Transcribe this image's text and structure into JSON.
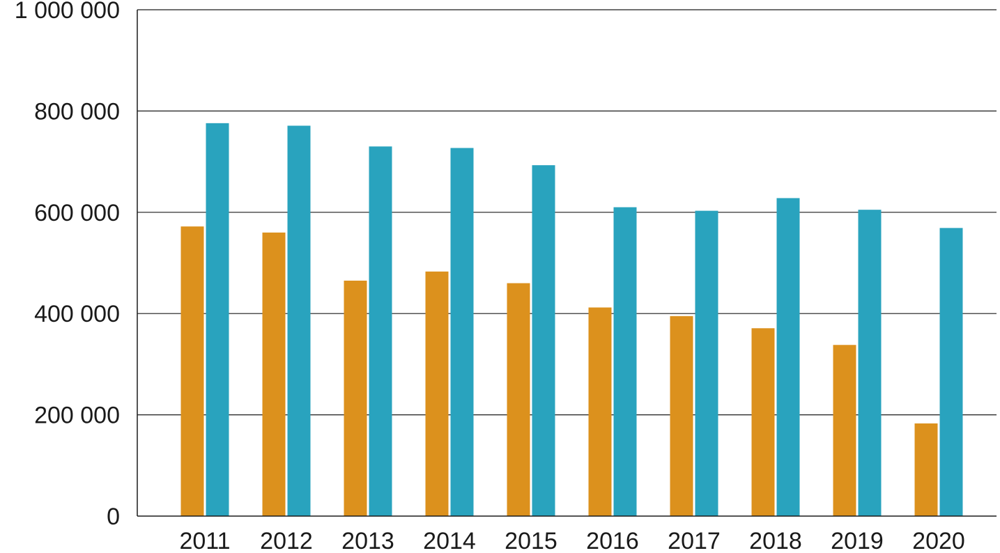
{
  "chart_data": {
    "type": "bar",
    "title": "",
    "xlabel": "",
    "ylabel": "",
    "categories": [
      "2011",
      "2012",
      "2013",
      "2014",
      "2015",
      "2016",
      "2017",
      "2018",
      "2019",
      "2020"
    ],
    "series": [
      {
        "color": "#dc911d",
        "values": [
          572000,
          560000,
          465000,
          483000,
          460000,
          412000,
          395000,
          371000,
          338000,
          183000
        ]
      },
      {
        "color": "#29a3be",
        "values": [
          776000,
          771000,
          730000,
          727000,
          693000,
          610000,
          603000,
          628000,
          605000,
          569000
        ]
      }
    ],
    "ylim": [
      0,
      1000000
    ],
    "yticks": [
      0,
      200000,
      400000,
      600000,
      800000,
      1000000
    ],
    "ytick_labels": [
      "0",
      "200 000",
      "400 000",
      "600 000",
      "800 000",
      "1 000 000"
    ],
    "grid": true,
    "legend": "none"
  }
}
